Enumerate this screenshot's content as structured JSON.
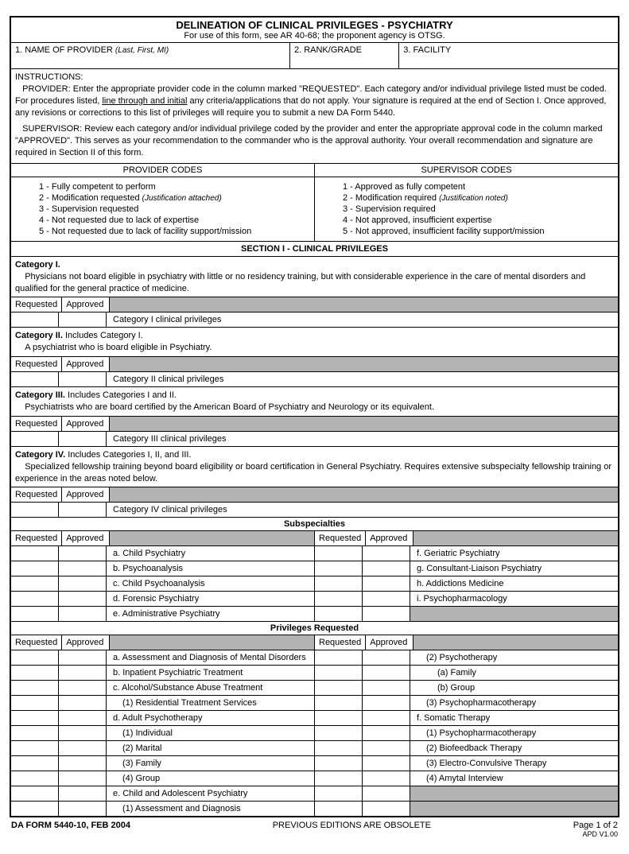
{
  "title": "DELINEATION OF CLINICAL PRIVILEGES - PSYCHIATRY",
  "subtitle": "For use of this form, see AR 40-68; the proponent agency is OTSG.",
  "header": {
    "field1_label": "1.  NAME OF PROVIDER",
    "field1_note": "(Last, First, MI)",
    "field2_label": "2.  RANK/GRADE",
    "field3_label": "3.  FACILITY"
  },
  "instructions": {
    "heading": "INSTRUCTIONS:",
    "provider_label": "PROVIDER:",
    "provider_text_a": " Enter the appropriate provider code in the column marked \"REQUESTED\".  Each category and/or individual privilege listed must be coded.  For procedures listed, ",
    "provider_underline": "line through and initial",
    "provider_text_b": " any criteria/applications that do not apply.  Your signature is required at the end of Section I.  Once approved, any revisions or corrections to this list of privileges will require you to submit a new DA Form 5440.",
    "supervisor_label": "SUPERVISOR:",
    "supervisor_text": " Review each category and/or individual privilege coded by the provider and enter the appropriate  approval code in the column marked \"APPROVED\".  This serves as your recommendation to the commander who is the approval authority.  Your overall recommendation and signature are required in Section II of this form."
  },
  "codes": {
    "provider_head": "PROVIDER CODES",
    "supervisor_head": "SUPERVISOR CODES",
    "provider": [
      "1 - Fully competent to perform",
      "2 - Modification requested",
      "3 - Supervision requested",
      "4 - Not requested due to lack of expertise",
      "5 - Not requested due to lack of facility support/mission"
    ],
    "provider_note": "(Justification attached)",
    "supervisor": [
      "1 - Approved as fully competent",
      "2 - Modification required",
      "3 - Supervision required",
      "4 - Not approved, insufficient expertise",
      "5 - Not approved, insufficient facility support/mission"
    ],
    "supervisor_note": "(Justification noted)"
  },
  "section1_header": "SECTION I - CLINICAL PRIVILEGES",
  "labels": {
    "requested": "Requested",
    "approved": "Approved"
  },
  "categories": [
    {
      "title": "Category I.",
      "desc": "Physicians not board eligible in psychiatry with little or no residency training, but with considerable experience in the care of mental disorders and qualified for the general practice of medicine.",
      "priv": "Category I clinical privileges"
    },
    {
      "title": "Category II.",
      "extra": "  Includes Category I.",
      "desc": "A psychiatrist who is board eligible in Psychiatry.",
      "priv": "Category II clinical privileges"
    },
    {
      "title": "Category III.",
      "extra": "  Includes Categories I and II.",
      "desc": "Psychiatrists who are board certified by the American Board of Psychiatry and Neurology or its equivalent.",
      "priv": "Category III clinical privileges"
    },
    {
      "title": "Category IV.",
      "extra": "  Includes Categories I, II, and III.",
      "desc": "Specialized fellowship training beyond board eligibility or board certification in General Psychiatry. Requires extensive subspecialty fellowship training or experience in the areas noted below.",
      "priv": "Category IV clinical privileges"
    }
  ],
  "subspecialties_header": "Subspecialties",
  "subspecialties": {
    "left": [
      "a.  Child Psychiatry",
      "b.  Psychoanalysis",
      "c.  Child Psychoanalysis",
      "d.  Forensic Psychiatry",
      "e.  Administrative Psychiatry"
    ],
    "right": [
      "f.   Geriatric Psychiatry",
      "g.  Consultant-Liaison Psychiatry",
      "h.  Addictions Medicine",
      "i.   Psychopharmacology",
      ""
    ]
  },
  "privreq_header": "Privileges Requested",
  "privreq": {
    "left": [
      {
        "t": "a.  Assessment and Diagnosis of Mental Disorders",
        "i": 0
      },
      {
        "t": "b.  Inpatient Psychiatric Treatment",
        "i": 0
      },
      {
        "t": "c.  Alcohol/Substance Abuse Treatment",
        "i": 0
      },
      {
        "t": "(1)  Residential Treatment Services",
        "i": 1
      },
      {
        "t": "d.  Adult Psychotherapy",
        "i": 0
      },
      {
        "t": "(1)  Individual",
        "i": 1
      },
      {
        "t": "(2)  Marital",
        "i": 1
      },
      {
        "t": "(3)  Family",
        "i": 1
      },
      {
        "t": "(4)  Group",
        "i": 1
      },
      {
        "t": "e.  Child and Adolescent Psychiatry",
        "i": 0
      },
      {
        "t": "(1)  Assessment and Diagnosis",
        "i": 1
      }
    ],
    "right": [
      {
        "t": "(2)  Psychotherapy",
        "i": 1
      },
      {
        "t": "(a)  Family",
        "i": 2
      },
      {
        "t": "(b)  Group",
        "i": 2
      },
      {
        "t": "(3)  Psychopharmacotherapy",
        "i": 1
      },
      {
        "t": "f.   Somatic Therapy",
        "i": 0
      },
      {
        "t": "(1)  Psychopharmacotherapy",
        "i": 1
      },
      {
        "t": "(2)  Biofeedback Therapy",
        "i": 1
      },
      {
        "t": "(3)  Electro-Convulsive Therapy",
        "i": 1
      },
      {
        "t": "(4)  Amytal Interview",
        "i": 1
      },
      {
        "t": "",
        "i": 0
      },
      {
        "t": "",
        "i": 0
      }
    ]
  },
  "footer": {
    "form_id": "DA FORM 5440-10, FEB 2004",
    "obsolete": "PREVIOUS EDITIONS ARE OBSOLETE",
    "page": "Page 1 of 2",
    "version": "APD V1.00"
  }
}
